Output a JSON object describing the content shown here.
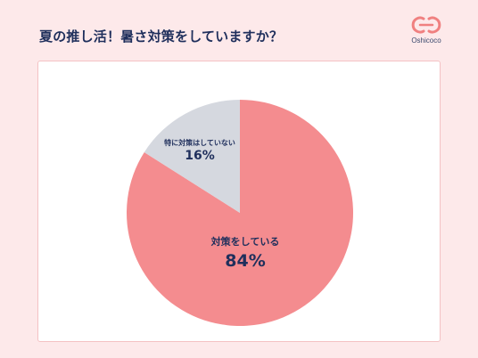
{
  "header": {
    "title": "夏の推し活！暑さ対策をしていますか？"
  },
  "logo": {
    "text": "Oshicoco",
    "color": "#f08080"
  },
  "chart_data": {
    "type": "pie",
    "slices": [
      {
        "label": "対策をしている",
        "value": 84,
        "value_label": "84%",
        "color": "#f48c8f"
      },
      {
        "label": "特に対策はしていない",
        "value": 16,
        "value_label": "16%",
        "color": "#d5d8df"
      }
    ]
  }
}
